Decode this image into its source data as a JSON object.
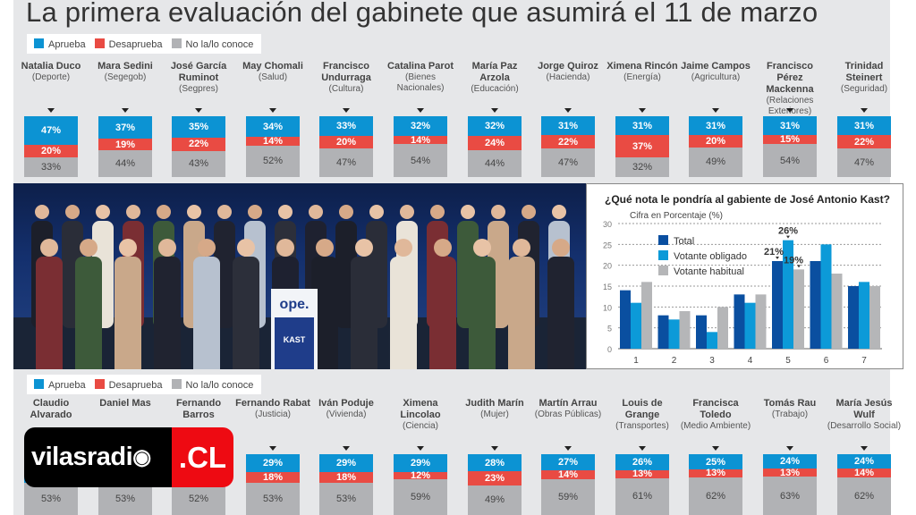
{
  "title": "La primera evaluación del gabinete que asumirá el 11 de marzo",
  "legend": {
    "approve": "Aprueba",
    "disapprove": "Desaprueba",
    "unknown": "No la/lo conoce"
  },
  "colors": {
    "approve": "#0c93d3",
    "disapprove": "#e94b43",
    "unknown": "#b1b2b5",
    "total": "#0a4fa0",
    "obligado": "#0c9ad8",
    "habitual": "#b5b6b8"
  },
  "top_row": [
    {
      "name": "Natalia Duco",
      "ministry": "(Deporte)",
      "values": [
        47,
        20,
        33
      ]
    },
    {
      "name": "Mara Sedini",
      "ministry": "(Segegob)",
      "values": [
        37,
        19,
        44
      ]
    },
    {
      "name": "José García Ruminot",
      "ministry": "(Segpres)",
      "values": [
        35,
        22,
        43
      ]
    },
    {
      "name": "May Chomali",
      "ministry": "(Salud)",
      "values": [
        34,
        14,
        52
      ]
    },
    {
      "name": "Francisco Undurraga",
      "ministry": "(Cultura)",
      "values": [
        33,
        20,
        47
      ]
    },
    {
      "name": "Catalina Parot",
      "ministry": "(Bienes Nacionales)",
      "values": [
        32,
        14,
        54
      ]
    },
    {
      "name": "María Paz Arzola",
      "ministry": "(Educación)",
      "values": [
        32,
        24,
        44
      ]
    },
    {
      "name": "Jorge Quiroz",
      "ministry": "(Hacienda)",
      "values": [
        31,
        22,
        47
      ]
    },
    {
      "name": "Ximena Rincón",
      "ministry": "(Energía)",
      "values": [
        31,
        37,
        32
      ]
    },
    {
      "name": "Jaime Campos",
      "ministry": "(Agricultura)",
      "values": [
        31,
        20,
        49
      ]
    },
    {
      "name": "Francisco Pérez Mackenna",
      "ministry": "(Relaciones Exteriores)",
      "values": [
        31,
        15,
        54
      ]
    },
    {
      "name": "Trinidad Steinert",
      "ministry": "(Seguridad)",
      "values": [
        31,
        22,
        47
      ]
    }
  ],
  "bottom_row": [
    {
      "name": "Claudio Alvarado",
      "ministry": "",
      "values": [
        null,
        null,
        53
      ]
    },
    {
      "name": "Daniel Mas",
      "ministry": "",
      "values": [
        null,
        null,
        53
      ]
    },
    {
      "name": "Fernando Barros",
      "ministry": "",
      "values": [
        null,
        null,
        52
      ]
    },
    {
      "name": "Fernando Rabat",
      "ministry": "(Justicia)",
      "values": [
        29,
        18,
        53
      ]
    },
    {
      "name": "Iván Poduje",
      "ministry": "(Vivienda)",
      "values": [
        29,
        18,
        53
      ]
    },
    {
      "name": "Ximena Lincolao",
      "ministry": "(Ciencia)",
      "values": [
        29,
        12,
        59
      ]
    },
    {
      "name": "Judith Marín",
      "ministry": "(Mujer)",
      "values": [
        28,
        23,
        49
      ]
    },
    {
      "name": "Martín Arrau",
      "ministry": "(Obras Públicas)",
      "values": [
        27,
        14,
        59
      ]
    },
    {
      "name": "Louis de Grange",
      "ministry": "(Transportes)",
      "values": [
        26,
        13,
        61
      ]
    },
    {
      "name": "Francisca Toledo",
      "ministry": "(Medio Ambiente)",
      "values": [
        25,
        13,
        62
      ]
    },
    {
      "name": "Tomás Rau",
      "ministry": "(Trabajo)",
      "values": [
        24,
        13,
        63
      ]
    },
    {
      "name": "María Jesús Wulf",
      "ministry": "(Desarrollo Social)",
      "values": [
        24,
        14,
        62
      ]
    }
  ],
  "photo": {
    "podium_text": "ope.",
    "podium_sign": "KAST"
  },
  "chart_data": {
    "type": "bar",
    "title": "¿Qué nota le pondría al gabiente de José Antonio Kast?",
    "ylabel": "Cifra en Porcentaje (%)",
    "categories": [
      "1",
      "2",
      "3",
      "4",
      "5",
      "6",
      "7"
    ],
    "ylim": [
      0,
      30
    ],
    "yticks": [
      0,
      5,
      10,
      15,
      20,
      25,
      30
    ],
    "grid": true,
    "legend_position": "top-left",
    "series": [
      {
        "name": "Total",
        "values": [
          14,
          8,
          8,
          13,
          21,
          21,
          15
        ]
      },
      {
        "name": "Votante obligado",
        "values": [
          11,
          7,
          4,
          11,
          26,
          25,
          16
        ]
      },
      {
        "name": "Votante habitual",
        "values": [
          16,
          9,
          10,
          13,
          19,
          18,
          15
        ]
      }
    ],
    "annotations": [
      "21%",
      "26%",
      "19%"
    ]
  },
  "logo": {
    "left": "vilasradio",
    "right": ".CL"
  }
}
